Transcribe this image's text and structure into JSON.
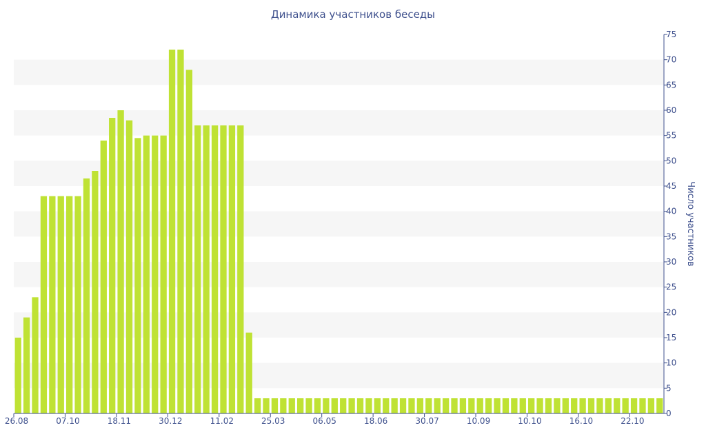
{
  "chart_data": {
    "type": "bar",
    "title": "Динамика участников беседы",
    "xlabel": "",
    "ylabel": "Число участников",
    "ylim": [
      0,
      75
    ],
    "yticks": [
      0,
      5,
      10,
      15,
      20,
      25,
      30,
      35,
      40,
      45,
      50,
      55,
      60,
      65,
      70,
      75
    ],
    "y_axis_side": "right",
    "grid": "alternating horizontal bands",
    "legend": "none",
    "bar_color": "#bfe234",
    "axis_color": "#3d4f8c",
    "band_color": "#f6f6f6",
    "x_tick_labels": [
      "26.08",
      "07.10",
      "18.11",
      "30.12",
      "11.02",
      "25.03",
      "06.05",
      "18.06",
      "30.07",
      "10.09",
      "10.10",
      "16.10",
      "22.10"
    ],
    "x_tick_label_bar_index": [
      0,
      6,
      12,
      18,
      24,
      30,
      36,
      42,
      48,
      54,
      60,
      66,
      72
    ],
    "values": [
      15,
      19,
      23,
      43,
      43,
      43,
      43,
      43,
      46.5,
      48,
      54,
      58.5,
      60,
      58,
      54.5,
      55,
      55,
      55,
      72,
      72,
      68,
      57,
      57,
      57,
      57,
      57,
      57,
      16,
      3,
      3,
      3,
      3,
      3,
      3,
      3,
      3,
      3,
      3,
      3,
      3,
      3,
      3,
      3,
      3,
      3,
      3,
      3,
      3,
      3,
      3,
      3,
      3,
      3,
      3,
      3,
      3,
      3,
      3,
      3,
      3,
      3,
      3,
      3,
      3,
      3,
      3,
      3,
      3,
      3,
      3,
      3,
      3,
      3,
      3,
      3,
      3
    ]
  }
}
